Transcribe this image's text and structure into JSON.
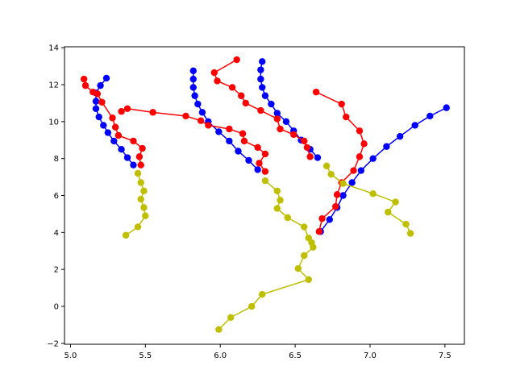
{
  "chart_data": {
    "type": "line",
    "title": "",
    "xlabel": "",
    "ylabel": "",
    "xlim": [
      4.96,
      7.63
    ],
    "ylim": [
      -2.05,
      14.05
    ],
    "xticks": [
      "5.0",
      "5.5",
      "6.0",
      "6.5",
      "7.0",
      "7.5"
    ],
    "yticks": [
      "−2",
      "0",
      "2",
      "4",
      "6",
      "8",
      "10",
      "12",
      "14"
    ],
    "grid": false,
    "legend": "none",
    "series": [
      {
        "color": "#0000ff",
        "points": [
          [
            5.24,
            12.35
          ],
          [
            5.2,
            11.95
          ],
          [
            5.17,
            11.55
          ],
          [
            5.17,
            11.1
          ],
          [
            5.17,
            10.7
          ],
          [
            5.19,
            10.25
          ],
          [
            5.22,
            9.8
          ],
          [
            5.25,
            9.4
          ],
          [
            5.29,
            8.95
          ],
          [
            5.34,
            8.5
          ],
          [
            5.38,
            8.05
          ],
          [
            5.42,
            7.65
          ]
        ]
      },
      {
        "color": "#0000ff",
        "points": [
          [
            5.82,
            12.75
          ],
          [
            5.82,
            12.3
          ],
          [
            5.82,
            11.85
          ],
          [
            5.83,
            11.4
          ],
          [
            5.85,
            10.95
          ],
          [
            5.88,
            10.5
          ],
          [
            5.92,
            10.0
          ],
          [
            5.99,
            9.45
          ],
          [
            6.06,
            8.95
          ],
          [
            6.12,
            8.4
          ],
          [
            6.19,
            7.9
          ],
          [
            6.25,
            7.4
          ]
        ]
      },
      {
        "color": "#0000ff",
        "points": [
          [
            6.28,
            13.25
          ],
          [
            6.27,
            12.8
          ],
          [
            6.27,
            12.3
          ],
          [
            6.28,
            11.85
          ],
          [
            6.3,
            11.4
          ],
          [
            6.34,
            10.95
          ],
          [
            6.38,
            10.45
          ],
          [
            6.44,
            10.0
          ],
          [
            6.49,
            9.5
          ],
          [
            6.54,
            9.0
          ],
          [
            6.6,
            8.5
          ],
          [
            6.65,
            8.05
          ]
        ]
      },
      {
        "color": "#0000ff",
        "points": [
          [
            6.67,
            4.05
          ],
          [
            6.73,
            4.7
          ],
          [
            6.78,
            5.35
          ],
          [
            6.82,
            6.0
          ],
          [
            6.88,
            6.7
          ],
          [
            6.94,
            7.35
          ],
          [
            7.02,
            8.0
          ],
          [
            7.11,
            8.65
          ],
          [
            7.2,
            9.2
          ],
          [
            7.3,
            9.8
          ],
          [
            7.4,
            10.3
          ],
          [
            7.51,
            10.75
          ]
        ]
      },
      {
        "color": "#ff0000",
        "points": [
          [
            6.11,
            13.35
          ],
          [
            5.96,
            12.65
          ],
          [
            5.98,
            12.2
          ],
          [
            6.08,
            11.85
          ],
          [
            6.14,
            11.4
          ],
          [
            6.17,
            11.0
          ],
          [
            6.27,
            10.6
          ],
          [
            6.38,
            10.15
          ],
          [
            6.4,
            9.6
          ],
          [
            6.49,
            9.3
          ],
          [
            6.56,
            8.95
          ],
          [
            6.58,
            8.6
          ],
          [
            6.6,
            8.1
          ]
        ]
      },
      {
        "color": "#ff0000",
        "points": [
          [
            5.09,
            12.3
          ],
          [
            5.1,
            11.95
          ],
          [
            5.15,
            11.6
          ],
          [
            5.18,
            11.5
          ],
          [
            5.21,
            11.05
          ],
          [
            5.28,
            10.2
          ],
          [
            5.3,
            9.7
          ],
          [
            5.32,
            9.25
          ],
          [
            5.42,
            8.95
          ],
          [
            5.48,
            8.55
          ],
          [
            5.46,
            8.1
          ],
          [
            5.47,
            7.65
          ]
        ]
      },
      {
        "color": "#ff0000",
        "points": [
          [
            5.34,
            10.55
          ],
          [
            5.38,
            10.7
          ],
          [
            5.55,
            10.5
          ],
          [
            5.77,
            10.3
          ],
          [
            5.87,
            10.05
          ],
          [
            5.92,
            9.8
          ],
          [
            6.06,
            9.6
          ],
          [
            6.15,
            9.35
          ],
          [
            6.16,
            8.95
          ],
          [
            6.25,
            8.6
          ],
          [
            6.3,
            8.25
          ],
          [
            6.26,
            7.75
          ],
          [
            6.3,
            7.3
          ]
        ]
      },
      {
        "color": "#ff0000",
        "points": [
          [
            6.64,
            11.6
          ],
          [
            6.81,
            10.95
          ],
          [
            6.84,
            10.25
          ],
          [
            6.93,
            9.5
          ],
          [
            6.96,
            8.8
          ],
          [
            6.93,
            8.1
          ],
          [
            6.89,
            7.35
          ],
          [
            6.81,
            6.7
          ],
          [
            6.78,
            6.05
          ],
          [
            6.77,
            5.4
          ],
          [
            6.68,
            4.75
          ],
          [
            6.66,
            4.05
          ]
        ]
      },
      {
        "color": "#bfbf00",
        "points": [
          [
            5.45,
            7.2
          ],
          [
            5.47,
            6.7
          ],
          [
            5.49,
            6.25
          ],
          [
            5.47,
            5.8
          ],
          [
            5.49,
            5.35
          ],
          [
            5.5,
            4.9
          ],
          [
            5.45,
            4.3
          ],
          [
            5.37,
            3.85
          ]
        ]
      },
      {
        "color": "#bfbf00",
        "points": [
          [
            6.3,
            6.8
          ],
          [
            6.38,
            6.25
          ],
          [
            6.4,
            5.75
          ],
          [
            6.38,
            5.3
          ],
          [
            6.45,
            4.8
          ],
          [
            6.56,
            4.3
          ],
          [
            6.59,
            3.7
          ],
          [
            6.61,
            3.45
          ],
          [
            6.62,
            3.2
          ],
          [
            6.56,
            2.75
          ],
          [
            6.52,
            2.05
          ],
          [
            6.59,
            1.45
          ],
          [
            6.28,
            0.65
          ],
          [
            6.21,
            0.0
          ],
          [
            6.07,
            -0.6
          ],
          [
            5.99,
            -1.25
          ]
        ]
      },
      {
        "color": "#bfbf00",
        "points": [
          [
            6.71,
            7.6
          ],
          [
            6.74,
            7.15
          ],
          [
            6.82,
            6.65
          ],
          [
            7.02,
            6.1
          ],
          [
            7.17,
            5.65
          ],
          [
            7.12,
            5.1
          ],
          [
            7.24,
            4.45
          ],
          [
            7.27,
            3.95
          ]
        ]
      }
    ]
  }
}
